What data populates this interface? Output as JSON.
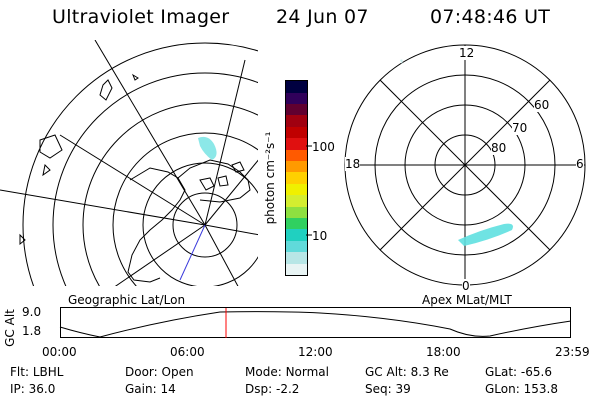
{
  "header": {
    "title": "Ultraviolet Imager",
    "date": "24 Jun 07",
    "time": "07:48:46 UT"
  },
  "colorbar": {
    "unit_label": "photon cm⁻²s⁻¹",
    "ticks": [
      {
        "label": "100",
        "value": 100
      },
      {
        "label": "10",
        "value": 10
      }
    ],
    "colors": [
      "#e8f4f4",
      "#b7e6e6",
      "#60dada",
      "#20d0c0",
      "#30d060",
      "#8ee040",
      "#d4ee30",
      "#f0f000",
      "#ffd000",
      "#ff9a00",
      "#ff5a00",
      "#e01010",
      "#c00000",
      "#a00010",
      "#600030",
      "#30005a",
      "#000040"
    ]
  },
  "maps": {
    "left_label": "Geographic Lat/Lon",
    "right_label": "Apex MLat/MLT",
    "mlt_labels": {
      "top": "12",
      "bottom": "0",
      "left": "18",
      "right": "6"
    },
    "mlat_labels": [
      "60",
      "70",
      "80"
    ]
  },
  "timeline": {
    "axis_label": "GC Alt",
    "y_ticks": [
      "9.0",
      "1.8"
    ],
    "x_ticks": [
      "00:00",
      "06:00",
      "12:00",
      "18:00",
      "23:59"
    ],
    "current_time_marker": "07:48",
    "marker_color": "#ff0000"
  },
  "status": {
    "row1": [
      {
        "key": "Flt:",
        "value": "LBHL"
      },
      {
        "key": "Door:",
        "value": "Open"
      },
      {
        "key": "Mode:",
        "value": "Normal"
      },
      {
        "key": "GC Alt:",
        "value": "8.3 Re"
      },
      {
        "key": "GLat:",
        "value": "-65.6"
      }
    ],
    "row2": [
      {
        "key": "IP:",
        "value": "36.0"
      },
      {
        "key": "Gain:",
        "value": "14"
      },
      {
        "key": "Dsp:",
        "value": "-2.2"
      },
      {
        "key": "Seq:",
        "value": "39"
      },
      {
        "key": "GLon:",
        "value": "153.8"
      }
    ]
  }
}
